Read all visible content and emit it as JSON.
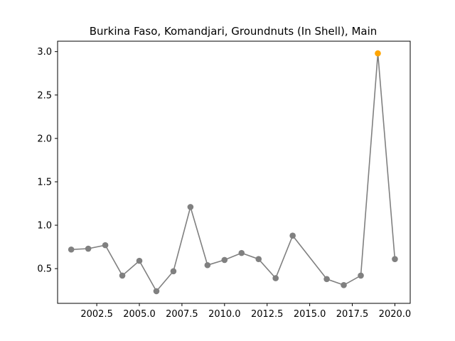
{
  "chart_data": {
    "type": "line",
    "title": "Burkina Faso, Komandjari, Groundnuts (In Shell), Main",
    "xlabel": "",
    "ylabel": "",
    "xlim": [
      2000.2,
      2020.9
    ],
    "ylim": [
      0.1,
      3.12
    ],
    "xticks": [
      2002.5,
      2005.0,
      2007.5,
      2010.0,
      2012.5,
      2015.0,
      2017.5,
      2020.0
    ],
    "xtick_labels": [
      "2002.5",
      "2005.0",
      "2007.5",
      "2010.0",
      "2012.5",
      "2015.0",
      "2017.5",
      "2020.0"
    ],
    "yticks": [
      0.5,
      1.0,
      1.5,
      2.0,
      2.5,
      3.0
    ],
    "ytick_labels": [
      "0.5",
      "1.0",
      "1.5",
      "2.0",
      "2.5",
      "3.0"
    ],
    "grid": false,
    "series": [
      {
        "x": [
          2001,
          2002,
          2003,
          2004,
          2005,
          2006,
          2007,
          2008,
          2009,
          2010,
          2011,
          2012,
          2013,
          2014,
          2016,
          2017,
          2018,
          2019,
          2020
        ],
        "y": [
          0.72,
          0.73,
          0.77,
          0.42,
          0.59,
          0.24,
          0.47,
          1.21,
          0.54,
          0.6,
          0.68,
          0.61,
          0.39,
          0.88,
          0.38,
          0.31,
          0.42,
          2.98,
          0.61
        ],
        "color": "#808080",
        "highlight_index": 17,
        "highlight_color": "#FFA500"
      }
    ]
  }
}
